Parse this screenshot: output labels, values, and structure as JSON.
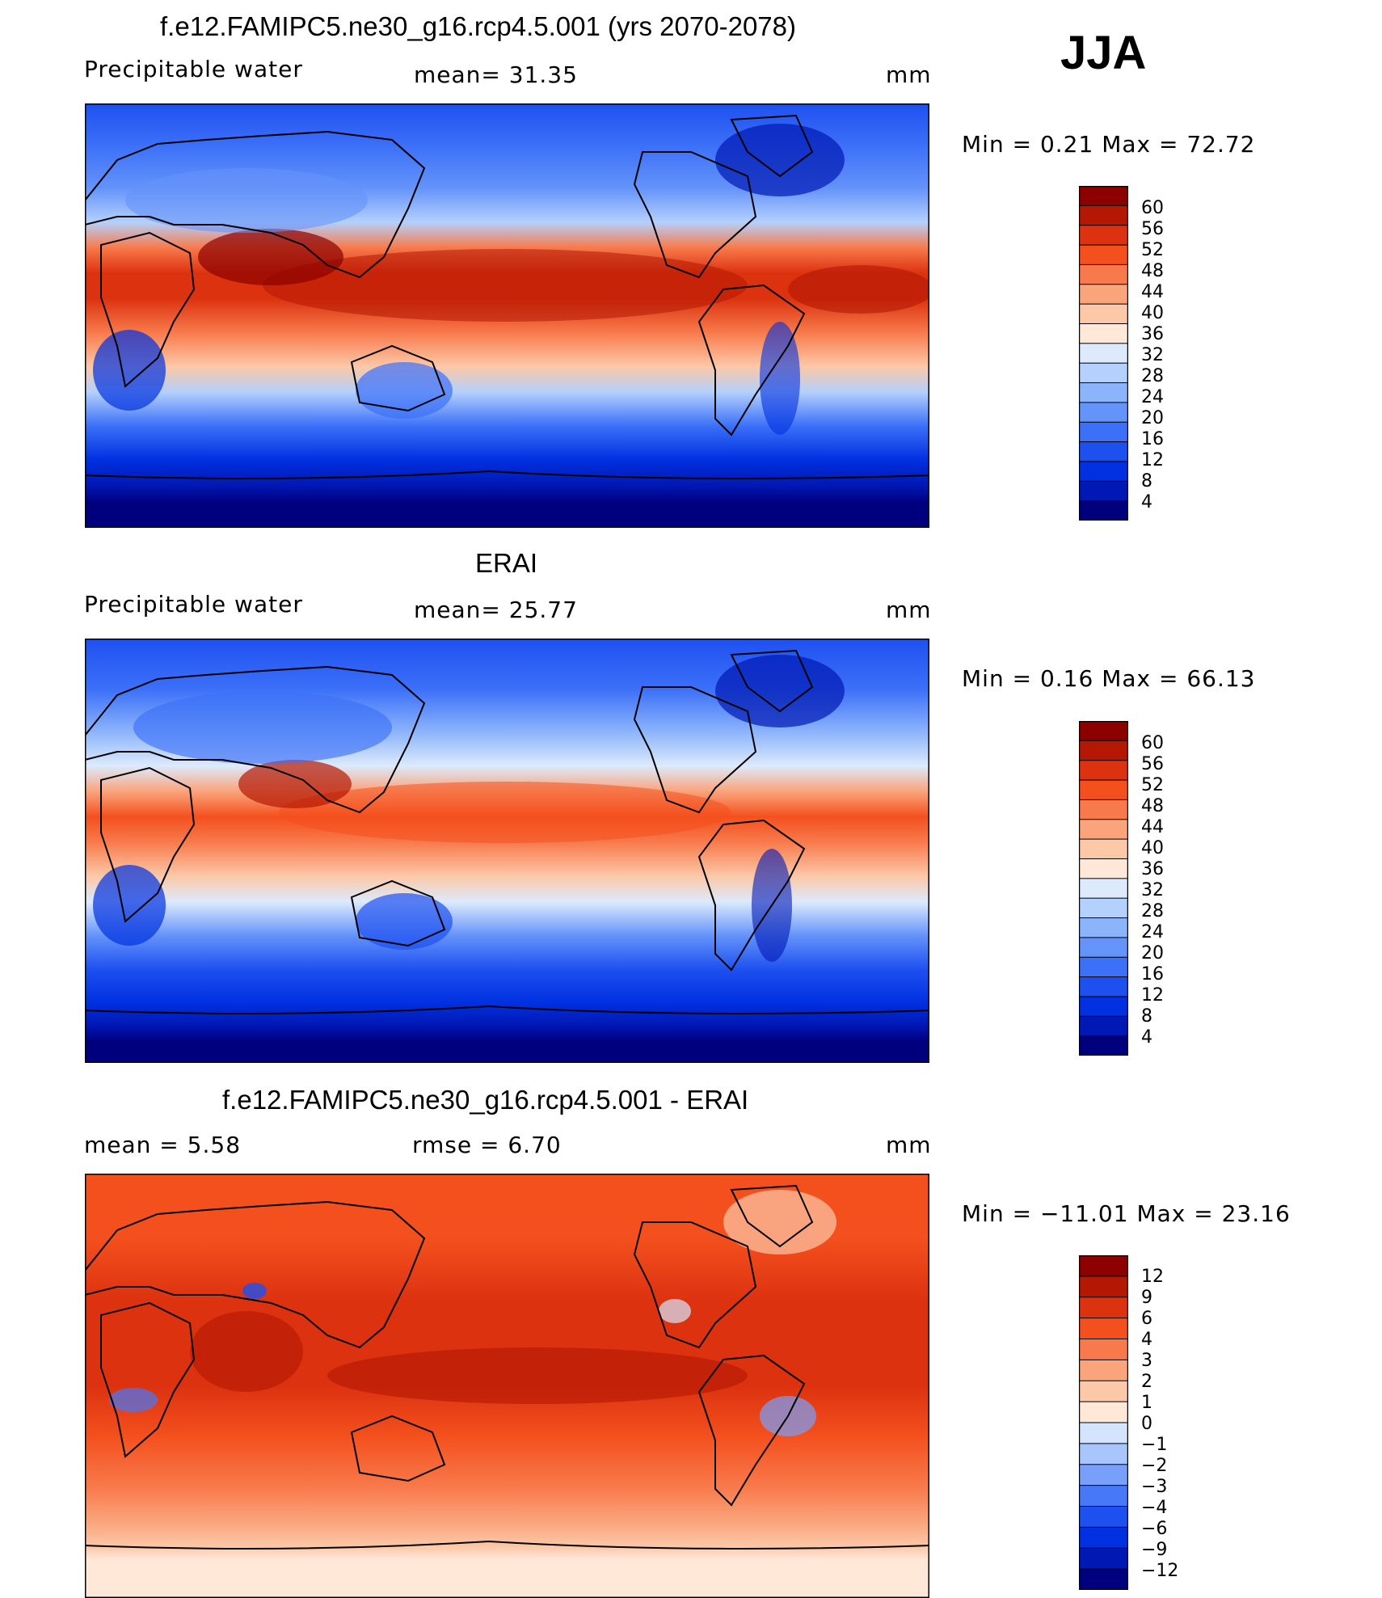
{
  "season": "JJA",
  "colors": {
    "abs_scale": [
      "#00007f",
      "#0018b4",
      "#0030e0",
      "#1e50f0",
      "#3c70f8",
      "#6493fa",
      "#8cb4fb",
      "#b4d0fc",
      "#dceafc",
      "#ffe8d8",
      "#fcc8a8",
      "#faa47c",
      "#f87a4c",
      "#f4501e",
      "#dc3210",
      "#b41804",
      "#8c0000"
    ],
    "diff_scale": [
      "#00007f",
      "#0018b4",
      "#0030e0",
      "#1e50f0",
      "#4678f8",
      "#78a0fa",
      "#a8c6fb",
      "#d4e4fc",
      "#ffe8d8",
      "#fcc8a8",
      "#faa47c",
      "#f87a4c",
      "#f4501e",
      "#dc3210",
      "#b41804",
      "#8c0000"
    ]
  },
  "panels": [
    {
      "title": "f.e12.FAMIPC5.ne30_g16.rcp4.5.001 (yrs 2070-2078)",
      "left_label": "Precipitable  water",
      "center_label": "mean=   31.35",
      "unit": "mm",
      "minmax": "Min  =     0.21  Max  =    72.72",
      "levels": [
        "60",
        "56",
        "52",
        "48",
        "44",
        "40",
        "36",
        "32",
        "28",
        "24",
        "20",
        "16",
        "12",
        "8",
        "4"
      ],
      "scale": "abs"
    },
    {
      "title": "ERAI",
      "left_label": "Precipitable  water",
      "center_label": "mean=   25.77",
      "unit": "mm",
      "minmax": "Min  =     0.16  Max  =    66.13",
      "levels": [
        "60",
        "56",
        "52",
        "48",
        "44",
        "40",
        "36",
        "32",
        "28",
        "24",
        "20",
        "16",
        "12",
        "8",
        "4"
      ],
      "scale": "abs"
    },
    {
      "title": "f.e12.FAMIPC5.ne30_g16.rcp4.5.001 - ERAI",
      "left_label": "mean  =      5.58",
      "center_label": "rmse  =      6.70",
      "unit": "mm",
      "minmax": "Min  = −11.01  Max  =    23.16",
      "levels": [
        "12",
        "9",
        "6",
        "4",
        "3",
        "2",
        "1",
        "0",
        "−1",
        "−2",
        "−3",
        "−4",
        "−6",
        "−9",
        "−12"
      ],
      "scale": "diff"
    }
  ]
}
